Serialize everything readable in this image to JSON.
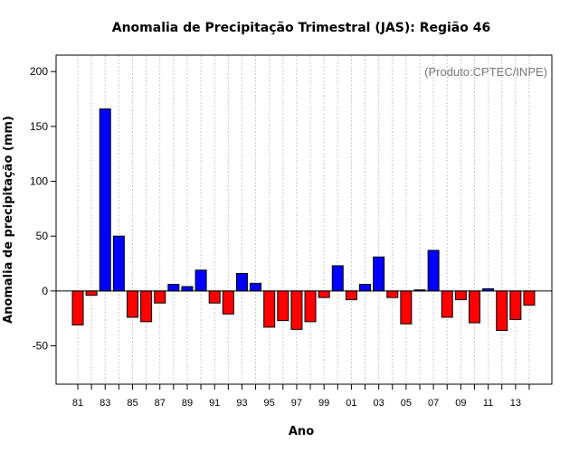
{
  "chart_data": {
    "type": "bar",
    "title": "Anomalia de Precipitação Trimestral (JAS): Região 46",
    "xlabel": "Ano",
    "ylabel": "Anomalia de precipitação (mm)",
    "annotation": "(Produto:CPTEC/INPE)",
    "ylim": [
      -85,
      215
    ],
    "yticks": [
      -50,
      0,
      50,
      100,
      150,
      200
    ],
    "grid": "vertical-dotted",
    "colors": {
      "positive": "#0000ff",
      "negative": "#ff0000"
    },
    "categories": [
      "81",
      "82",
      "83",
      "84",
      "85",
      "86",
      "87",
      "88",
      "89",
      "90",
      "91",
      "92",
      "93",
      "94",
      "95",
      "96",
      "97",
      "98",
      "99",
      "00",
      "01",
      "02",
      "03",
      "04",
      "05",
      "06",
      "07",
      "08",
      "09",
      "10",
      "11",
      "12",
      "13",
      "14"
    ],
    "tick_labels": [
      "81",
      "83",
      "85",
      "87",
      "89",
      "91",
      "93",
      "95",
      "97",
      "99",
      "01",
      "03",
      "05",
      "07",
      "09",
      "11",
      "13"
    ],
    "values": [
      -31,
      -4,
      166,
      50,
      -24,
      -28,
      -11,
      6,
      4,
      19,
      -11,
      -21,
      16,
      7,
      -33,
      -27,
      -35,
      -28,
      -6,
      23,
      -8,
      6,
      31,
      -6,
      -30,
      1,
      37,
      -24,
      -8,
      -29,
      2,
      -36,
      -26,
      -13
    ]
  }
}
